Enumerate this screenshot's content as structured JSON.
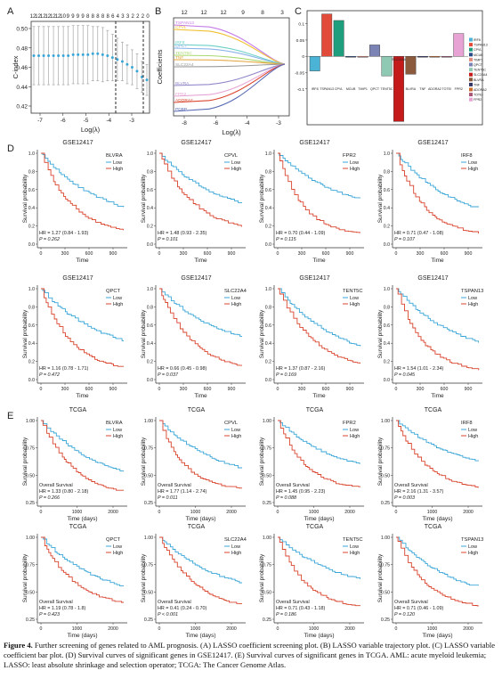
{
  "panels": {
    "A": {
      "letter": "A",
      "ylabel": "C-index",
      "xlabel": "Log(λ)",
      "top_ticks": [
        "12",
        "12",
        "12",
        "12",
        "12",
        "12",
        "10",
        "9",
        "9",
        "9",
        "9",
        "8",
        "8",
        "8",
        "8",
        "8",
        "6",
        "4",
        "3",
        "3",
        "2",
        "2",
        "2",
        "0"
      ],
      "yticks": [
        "0.50",
        "0.48",
        "0.46",
        "0.44",
        "0.42"
      ],
      "xticks": [
        "-7",
        "-6",
        "-5",
        "-4",
        "-3"
      ],
      "y_values": [
        0.472,
        0.472,
        0.472,
        0.472,
        0.472,
        0.472,
        0.472,
        0.472,
        0.473,
        0.473,
        0.473,
        0.473,
        0.474,
        0.474,
        0.473,
        0.472,
        0.47,
        0.468,
        0.466,
        0.463,
        0.46,
        0.456,
        0.45,
        0.447
      ],
      "err": [
        0.03,
        0.03,
        0.03,
        0.03,
        0.03,
        0.03,
        0.03,
        0.03,
        0.03,
        0.03,
        0.03,
        0.03,
        0.028,
        0.028,
        0.028,
        0.026,
        0.024,
        0.022,
        0.02,
        0.02,
        0.018,
        0.018,
        0.016,
        0.016
      ],
      "color": "#3aa6d8"
    },
    "B": {
      "letter": "B",
      "ylabel": "Coefficients",
      "xlabel": "Log(λ)",
      "top_ticks": [
        "12",
        "12",
        "12",
        "9",
        "8",
        "3"
      ],
      "xticks": [
        "-8",
        "-6",
        "-4",
        "-3"
      ],
      "yticks": [
        "",
        "",
        "",
        ""
      ],
      "curve_labels": [
        "TSPAN13",
        "CPVL",
        "IRF8",
        "QPCT",
        "TENT5C",
        "TNF",
        "SLC22A4",
        "BLVRA",
        "FPR2",
        "ADORA2",
        "PDBP"
      ]
    },
    "C": {
      "letter": "C",
      "yticks": [
        "0.1",
        "0.05",
        "0",
        "-0.05",
        "-0.1"
      ],
      "bars": [
        {
          "gene": "IRF8",
          "value": -0.045,
          "color": "#4ab3d6"
        },
        {
          "gene": "TSPAN13",
          "value": 0.13,
          "color": "#e24b3a"
        },
        {
          "gene": "CPVL",
          "value": 0.11,
          "color": "#1f9e7e"
        },
        {
          "gene": "MCUB",
          "value": 0.0,
          "color": "#2b4a8a"
        },
        {
          "gene": "TIMP1",
          "value": 0.0,
          "color": "#e08a7c"
        },
        {
          "gene": "QPCT",
          "value": 0.035,
          "color": "#7b83b5"
        },
        {
          "gene": "TENT5C",
          "value": -0.06,
          "color": "#8fc9b3"
        },
        {
          "gene": "SLC22A4",
          "value": -0.2,
          "color": "#c41a1a"
        },
        {
          "gene": "BLVRA",
          "value": -0.055,
          "color": "#8b5a3c"
        },
        {
          "gene": "TNF",
          "value": 0.0,
          "color": "#333366"
        },
        {
          "gene": "ADORA2",
          "value": 0.0,
          "color": "#cc6b2c"
        },
        {
          "gene": "TOTEI",
          "value": 0.0,
          "color": "#aa5577"
        },
        {
          "gene": "FPR2",
          "value": 0.07,
          "color": "#e6a3d4"
        }
      ]
    },
    "D": {
      "letter": "D",
      "ylabel": "Survival probability",
      "xlabel": "Time",
      "xticks": [
        "0",
        "300",
        "600",
        "900"
      ],
      "yticks": [
        "1.0",
        "0.8",
        "0.6",
        "0.4",
        "0.2",
        "0.0"
      ],
      "legend_low": "Low",
      "legend_high": "High",
      "plots": [
        {
          "dataset": "GSE12417",
          "gene": "BLVRA",
          "hr": "HR = 1.27 (0.84 - 1.93)",
          "p": "P = 0.262"
        },
        {
          "dataset": "GSE12417",
          "gene": "CPVL",
          "hr": "HR = 1.48 (0.93 - 2.35)",
          "p": "P = 0.101"
        },
        {
          "dataset": "GSE12417",
          "gene": "FPR2",
          "hr": "HR = 0.70 (0.44 - 1.09)",
          "p": "P = 0.115"
        },
        {
          "dataset": "GSE12417",
          "gene": "IRF8",
          "hr": "HR = 0.71 (0.47 - 1.08)",
          "p": "P = 0.107"
        },
        {
          "dataset": "GSE12417",
          "gene": "QPCT",
          "hr": "HR = 1.16 (0.78 - 1.71)",
          "p": "P = 0.472"
        },
        {
          "dataset": "GSE12417",
          "gene": "SLC22A4",
          "hr": "HR = 0.66 (0.45 - 0.98)",
          "p": "P = 0.037"
        },
        {
          "dataset": "GSE12417",
          "gene": "TENT5C",
          "hr": "HR = 1.37 (0.87 - 2.16)",
          "p": "P = 0.169"
        },
        {
          "dataset": "GSE12417",
          "gene": "TSPAN13",
          "hr": "HR = 1.54 (1.01 - 2.34)",
          "p": "P = 0.045"
        }
      ]
    },
    "E": {
      "letter": "E",
      "ylabel": "Survival probability",
      "xlabel": "Time (days)",
      "xticks": [
        "0",
        "1000",
        "2000"
      ],
      "yticks": [
        "1.00",
        "0.75",
        "0.50",
        "0.25"
      ],
      "legend_low": "Low",
      "legend_high": "High",
      "os_label": "Overall Survival",
      "plots": [
        {
          "dataset": "TCGA",
          "gene": "BLVRA",
          "hr": "HR = 1.33 (0.80 - 2.18)",
          "p": "P = 0.266"
        },
        {
          "dataset": "TCGA",
          "gene": "CPVL",
          "hr": "HR = 1.77 (1.14 - 2.74)",
          "p": "P = 0.011"
        },
        {
          "dataset": "TCGA",
          "gene": "FPR2",
          "hr": "HR = 1.45 (0.95 - 2.23)",
          "p": "P = 0.088"
        },
        {
          "dataset": "TCGA",
          "gene": "IRF8",
          "hr": "HR = 2.16 (1.31 - 3.57)",
          "p": "P = 0.003"
        },
        {
          "dataset": "TCGA",
          "gene": "QPCT",
          "hr": "HR = 1.19 (0.78 - 1.8)",
          "p": "P = 0.423"
        },
        {
          "dataset": "TCGA",
          "gene": "SLC22A4",
          "hr": "HR = 0.41 (0.24 - 0.70)",
          "p": "P < 0.001"
        },
        {
          "dataset": "TCGA",
          "gene": "TENT5C",
          "hr": "HR = 0.71 (0.43 - 1.18)",
          "p": "P = 0.186"
        },
        {
          "dataset": "TCGA",
          "gene": "TSPAN13",
          "hr": "HR = 0.71 (0.46 - 1.09)",
          "p": "P = 0.120"
        }
      ]
    }
  },
  "colors": {
    "low": "#3aa6d8",
    "high": "#d9442c"
  },
  "caption": {
    "fig_label": "Figure 4.",
    "text": " Further screening of genes related to AML prognosis. (A) LASSO coefficient screening plot. (B) LASSO variable trajectory plot. (C) LASSO variable coefficient bar plot. (D) Survival curves of significant genes in GSE12417. (E) Survival curves of significant genes in TCGA. AML: acute myeloid leukemia; LASSO: least absolute shrinkage and selection operator; TCGA: The Cancer Genome Atlas."
  }
}
